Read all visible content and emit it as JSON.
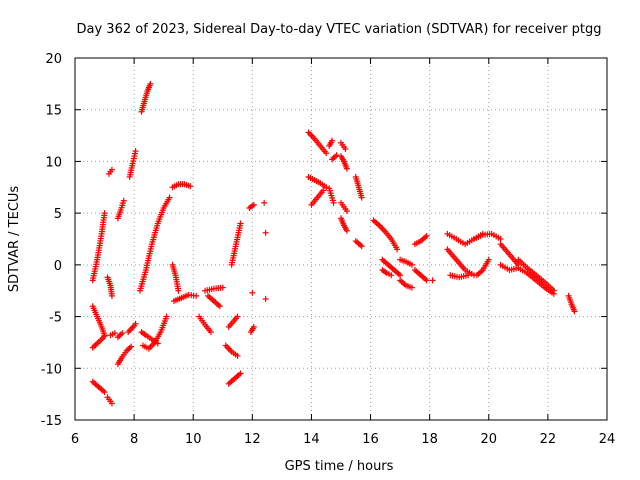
{
  "chart_data": {
    "type": "scatter",
    "title": "Day 362 of 2023, Sidereal Day-to-day VTEC variation (SDTVAR) for receiver ptgg",
    "xlabel": "GPS time / hours",
    "ylabel": "SDTVAR / TECUs",
    "xlim": [
      6,
      24
    ],
    "ylim": [
      -15,
      20
    ],
    "xticks": [
      "6",
      "8",
      "10",
      "12",
      "14",
      "16",
      "18",
      "20",
      "22",
      "24"
    ],
    "yticks": [
      "-15",
      "-10",
      "-5",
      "0",
      "5",
      "10",
      "15",
      "20"
    ],
    "grid": true,
    "marker": "+",
    "color": "#ff0000",
    "segments": [
      {
        "x": [
          6.6,
          6.75,
          6.9,
          7.0
        ],
        "y": [
          -1.5,
          0.5,
          3.0,
          5.0
        ]
      },
      {
        "x": [
          6.6,
          6.75,
          6.9,
          7.0
        ],
        "y": [
          -4.0,
          -5.0,
          -6.0,
          -6.8
        ]
      },
      {
        "x": [
          6.6,
          6.75,
          6.9,
          7.0
        ],
        "y": [
          -8.0,
          -7.6,
          -7.2,
          -6.9
        ]
      },
      {
        "x": [
          6.6,
          6.8,
          7.0
        ],
        "y": [
          -11.3,
          -11.8,
          -12.3
        ]
      },
      {
        "x": [
          7.1,
          7.2,
          7.25
        ],
        "y": [
          -12.8,
          -13.2,
          -13.4
        ]
      },
      {
        "x": [
          7.15,
          7.2,
          7.25
        ],
        "y": [
          8.8,
          9.0,
          9.2
        ]
      },
      {
        "x": [
          7.1,
          7.2,
          7.25
        ],
        "y": [
          -1.2,
          -2.0,
          -3.0
        ]
      },
      {
        "x": [
          7.2,
          7.35
        ],
        "y": [
          -6.8,
          -6.6
        ]
      },
      {
        "x": [
          7.45,
          7.55,
          7.65
        ],
        "y": [
          4.5,
          5.3,
          6.2
        ]
      },
      {
        "x": [
          7.45,
          7.6,
          7.75,
          7.9
        ],
        "y": [
          -9.6,
          -8.9,
          -8.3,
          -7.9
        ]
      },
      {
        "x": [
          7.45,
          7.6
        ],
        "y": [
          -7.0,
          -6.6
        ]
      },
      {
        "x": [
          7.8,
          7.9,
          8.0,
          8.05
        ],
        "y": [
          -6.5,
          -6.2,
          -5.9,
          -5.7
        ]
      },
      {
        "x": [
          7.85,
          7.95,
          8.05
        ],
        "y": [
          8.5,
          9.8,
          11.0
        ]
      },
      {
        "x": [
          8.25,
          8.35,
          8.45,
          8.55
        ],
        "y": [
          14.8,
          15.8,
          16.8,
          17.5
        ]
      },
      {
        "x": [
          8.2,
          8.4,
          8.6,
          8.8,
          9.0,
          9.2
        ],
        "y": [
          -2.5,
          -0.5,
          2.0,
          4.0,
          5.5,
          6.5
        ]
      },
      {
        "x": [
          8.25,
          8.4,
          8.6,
          8.8
        ],
        "y": [
          -6.5,
          -6.8,
          -7.2,
          -7.6
        ]
      },
      {
        "x": [
          8.3,
          8.5,
          8.7,
          8.9,
          9.1
        ],
        "y": [
          -7.8,
          -8.1,
          -7.5,
          -6.5,
          -5.0
        ]
      },
      {
        "x": [
          9.3,
          9.5,
          9.7,
          9.9
        ],
        "y": [
          7.5,
          7.8,
          7.8,
          7.6
        ]
      },
      {
        "x": [
          9.3,
          9.4,
          9.5
        ],
        "y": [
          0.0,
          -1.0,
          -2.5
        ]
      },
      {
        "x": [
          9.35,
          9.6,
          9.85,
          10.1
        ],
        "y": [
          -3.5,
          -3.2,
          -2.9,
          -3.0
        ]
      },
      {
        "x": [
          10.2,
          10.4,
          10.6
        ],
        "y": [
          -5.0,
          -5.8,
          -6.5
        ]
      },
      {
        "x": [
          10.4,
          10.7,
          11.0
        ],
        "y": [
          -2.5,
          -2.3,
          -2.2
        ]
      },
      {
        "x": [
          10.5,
          10.7,
          10.9
        ],
        "y": [
          -3.0,
          -3.5,
          -4.0
        ]
      },
      {
        "x": [
          11.1,
          11.3,
          11.5
        ],
        "y": [
          -7.8,
          -8.4,
          -8.8
        ]
      },
      {
        "x": [
          11.2,
          11.4,
          11.6
        ],
        "y": [
          -11.5,
          -11.0,
          -10.5
        ]
      },
      {
        "x": [
          11.2,
          11.35,
          11.5
        ],
        "y": [
          -6.0,
          -5.5,
          -5.0
        ]
      },
      {
        "x": [
          11.3,
          11.45,
          11.6
        ],
        "y": [
          0.0,
          2.0,
          4.0
        ]
      },
      {
        "x": [
          11.9,
          12.05
        ],
        "y": [
          5.5,
          5.8
        ]
      },
      {
        "x": [
          11.95,
          12.05
        ],
        "y": [
          -6.5,
          -6.0
        ]
      },
      {
        "x": [
          12.0
        ],
        "y": [
          -2.7
        ]
      },
      {
        "x": [
          12.4
        ],
        "y": [
          6.0
        ]
      },
      {
        "x": [
          12.45
        ],
        "y": [
          3.1
        ]
      },
      {
        "x": [
          12.45
        ],
        "y": [
          -3.3
        ]
      },
      {
        "x": [
          13.9,
          14.1,
          14.3,
          14.5
        ],
        "y": [
          12.8,
          12.2,
          11.5,
          10.8
        ]
      },
      {
        "x": [
          13.9,
          14.1,
          14.3,
          14.5
        ],
        "y": [
          8.5,
          8.2,
          7.9,
          7.5
        ]
      },
      {
        "x": [
          14.0,
          14.2,
          14.4
        ],
        "y": [
          5.8,
          6.5,
          7.2
        ]
      },
      {
        "x": [
          14.6,
          14.7
        ],
        "y": [
          11.5,
          12.0
        ]
      },
      {
        "x": [
          14.6,
          14.75
        ],
        "y": [
          7.4,
          6.0
        ]
      },
      {
        "x": [
          14.7,
          14.85
        ],
        "y": [
          10.2,
          10.6
        ]
      },
      {
        "x": [
          15.0,
          15.15
        ],
        "y": [
          11.8,
          11.2
        ]
      },
      {
        "x": [
          15.0,
          15.1,
          15.2
        ],
        "y": [
          10.5,
          10.0,
          9.3
        ]
      },
      {
        "x": [
          15.0,
          15.1,
          15.2
        ],
        "y": [
          6.0,
          5.6,
          5.2
        ]
      },
      {
        "x": [
          15.0,
          15.1,
          15.2
        ],
        "y": [
          4.5,
          3.8,
          3.3
        ]
      },
      {
        "x": [
          15.5,
          15.6,
          15.7
        ],
        "y": [
          8.5,
          7.5,
          6.5
        ]
      },
      {
        "x": [
          15.5,
          15.7
        ],
        "y": [
          2.3,
          1.8
        ]
      },
      {
        "x": [
          16.1,
          16.3,
          16.5,
          16.7,
          16.9
        ],
        "y": [
          4.3,
          3.8,
          3.2,
          2.5,
          1.5
        ]
      },
      {
        "x": [
          16.4,
          16.6,
          16.8,
          17.0
        ],
        "y": [
          0.5,
          0.0,
          -0.5,
          -1.0
        ]
      },
      {
        "x": [
          16.4,
          16.55,
          16.7
        ],
        "y": [
          -0.5,
          -0.8,
          -1.0
        ]
      },
      {
        "x": [
          17.0,
          17.2,
          17.4
        ],
        "y": [
          -1.5,
          -2.0,
          -2.2
        ]
      },
      {
        "x": [
          17.0,
          17.2,
          17.4
        ],
        "y": [
          0.5,
          0.3,
          0.0
        ]
      },
      {
        "x": [
          17.5,
          17.7,
          17.9
        ],
        "y": [
          2.0,
          2.3,
          2.8
        ]
      },
      {
        "x": [
          17.5,
          17.7,
          17.9
        ],
        "y": [
          -0.5,
          -1.0,
          -1.5
        ]
      },
      {
        "x": [
          18.1
        ],
        "y": [
          -1.5
        ]
      },
      {
        "x": [
          18.6,
          18.9,
          19.2,
          19.5,
          19.8
        ],
        "y": [
          3.0,
          2.5,
          2.0,
          2.5,
          3.0
        ]
      },
      {
        "x": [
          18.6,
          18.9,
          19.2,
          19.5
        ],
        "y": [
          1.5,
          0.5,
          -0.5,
          -1.0
        ]
      },
      {
        "x": [
          18.7,
          19.0,
          19.3
        ],
        "y": [
          -1.0,
          -1.2,
          -1.0
        ]
      },
      {
        "x": [
          19.5,
          19.8,
          20.1,
          20.4
        ],
        "y": [
          2.5,
          2.9,
          3.0,
          2.5
        ]
      },
      {
        "x": [
          19.6,
          19.8,
          20.0
        ],
        "y": [
          -1.0,
          -0.5,
          0.5
        ]
      },
      {
        "x": [
          20.4,
          20.7,
          21.0
        ],
        "y": [
          2.0,
          1.0,
          0.0
        ]
      },
      {
        "x": [
          20.4,
          20.7,
          21.0
        ],
        "y": [
          0.0,
          -0.5,
          -0.3
        ]
      },
      {
        "x": [
          21.0,
          21.3,
          21.6,
          21.9,
          22.2
        ],
        "y": [
          0.5,
          -0.3,
          -1.0,
          -1.7,
          -2.5
        ]
      },
      {
        "x": [
          21.0,
          21.3,
          21.6,
          21.9,
          22.2
        ],
        "y": [
          -0.3,
          -0.8,
          -1.5,
          -2.2,
          -2.8
        ]
      },
      {
        "x": [
          22.7,
          22.8,
          22.9
        ],
        "y": [
          -3.0,
          -3.8,
          -4.5
        ]
      }
    ]
  }
}
